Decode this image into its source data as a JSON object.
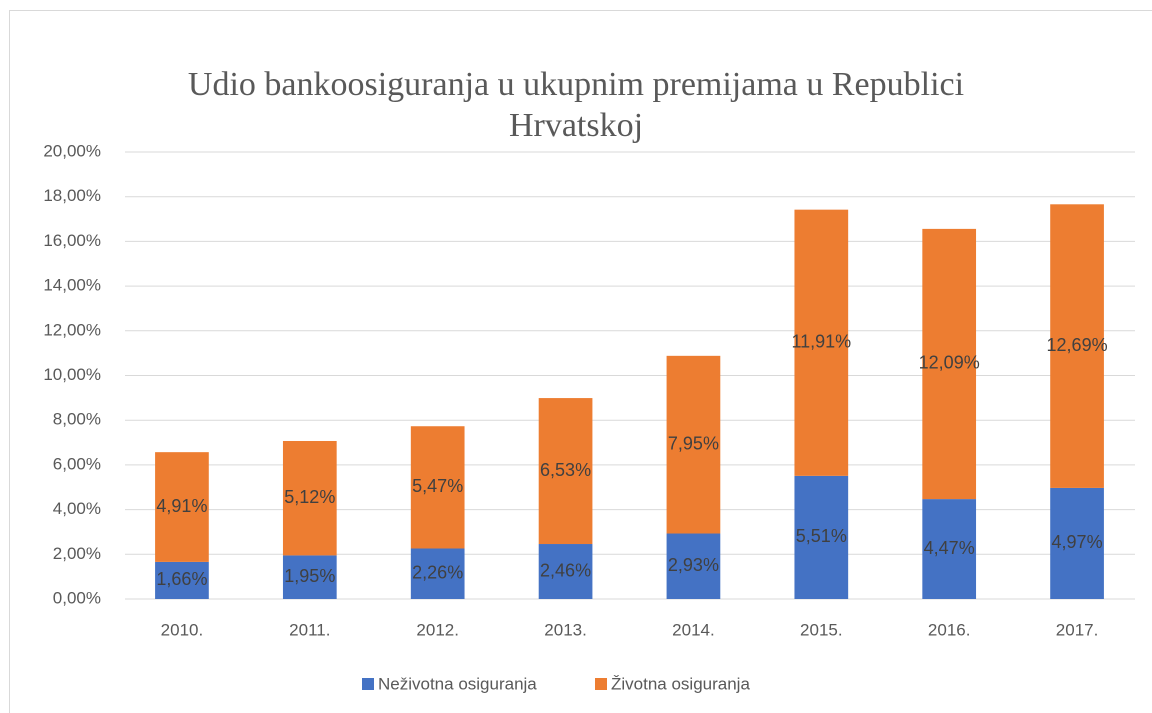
{
  "chart_data": {
    "type": "stacked_bar",
    "title": "Udio bankoosiguranja u ukupnim premijama u Republici Hrvatskoj",
    "categories": [
      "2010.",
      "2011.",
      "2012.",
      "2013.",
      "2014.",
      "2015.",
      "2016.",
      "2017."
    ],
    "series": [
      {
        "name": "Neživotna osiguranja",
        "color": "#4472c4",
        "values": [
          1.66,
          1.95,
          2.26,
          2.46,
          2.93,
          5.51,
          4.47,
          4.97
        ],
        "value_labels": [
          "1,66%",
          "1,95%",
          "2,26%",
          "2,46%",
          "2,93%",
          "5,51%",
          "4,47%",
          "4,97%"
        ]
      },
      {
        "name": "Životna osiguranja",
        "color": "#ed7d31",
        "values": [
          4.91,
          5.12,
          5.47,
          6.53,
          7.95,
          11.91,
          12.09,
          12.69
        ],
        "value_labels": [
          "4,91%",
          "5,12%",
          "5,47%",
          "6,53%",
          "7,95%",
          "11,91%",
          "12,09%",
          "12,69%"
        ]
      }
    ],
    "ylim": [
      0,
      20
    ],
    "yticks": [
      {
        "value": 0,
        "label": "0,00%"
      },
      {
        "value": 2,
        "label": "2,00%"
      },
      {
        "value": 4,
        "label": "4,00%"
      },
      {
        "value": 6,
        "label": "6,00%"
      },
      {
        "value": 8,
        "label": "8,00%"
      },
      {
        "value": 10,
        "label": "10,00%"
      },
      {
        "value": 12,
        "label": "12,00%"
      },
      {
        "value": 14,
        "label": "14,00%"
      },
      {
        "value": 16,
        "label": "16,00%"
      },
      {
        "value": 18,
        "label": "18,00%"
      },
      {
        "value": 20,
        "label": "20,00%"
      }
    ],
    "grid": true,
    "legend": "bottom"
  }
}
